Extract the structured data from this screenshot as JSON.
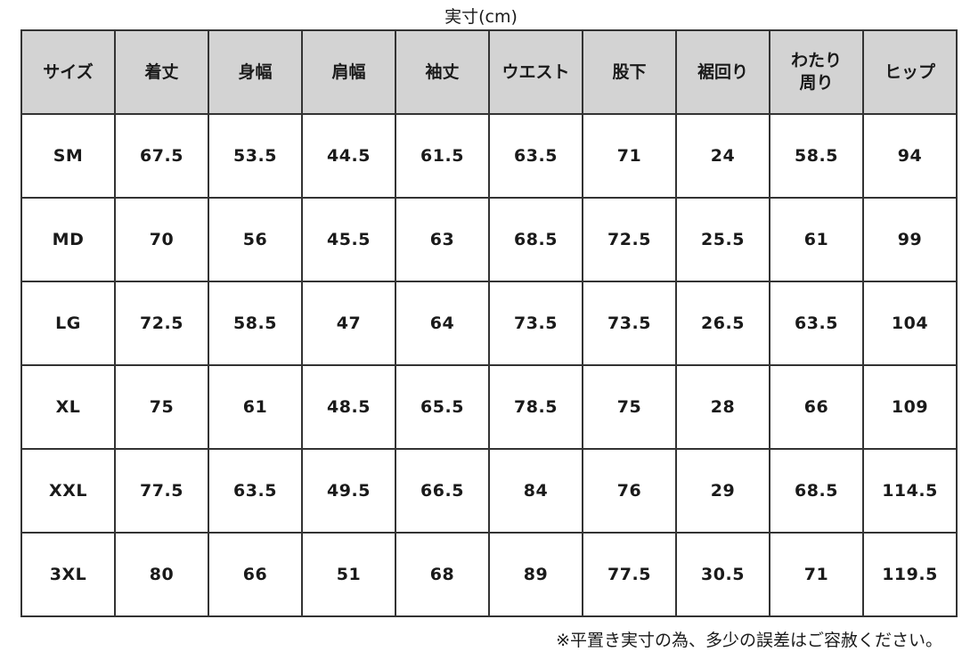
{
  "caption": "実寸(cm)",
  "colors": {
    "header_bg": "#d3d3d3",
    "border": "#333333"
  },
  "headers": [
    "サイズ",
    "着丈",
    "身幅",
    "肩幅",
    "袖丈",
    "ウエスト",
    "股下",
    "裾回り",
    "わたり\n周り",
    "ヒップ"
  ],
  "rows": [
    [
      "SM",
      "67.5",
      "53.5",
      "44.5",
      "61.5",
      "63.5",
      "71",
      "24",
      "58.5",
      "94"
    ],
    [
      "MD",
      "70",
      "56",
      "45.5",
      "63",
      "68.5",
      "72.5",
      "25.5",
      "61",
      "99"
    ],
    [
      "LG",
      "72.5",
      "58.5",
      "47",
      "64",
      "73.5",
      "73.5",
      "26.5",
      "63.5",
      "104"
    ],
    [
      "XL",
      "75",
      "61",
      "48.5",
      "65.5",
      "78.5",
      "75",
      "28",
      "66",
      "109"
    ],
    [
      "XXL",
      "77.5",
      "63.5",
      "49.5",
      "66.5",
      "84",
      "76",
      "29",
      "68.5",
      "114.5"
    ],
    [
      "3XL",
      "80",
      "66",
      "51",
      "68",
      "89",
      "77.5",
      "30.5",
      "71",
      "119.5"
    ]
  ],
  "note": "※平置き実寸の為、多少の誤差はご容赦ください。"
}
